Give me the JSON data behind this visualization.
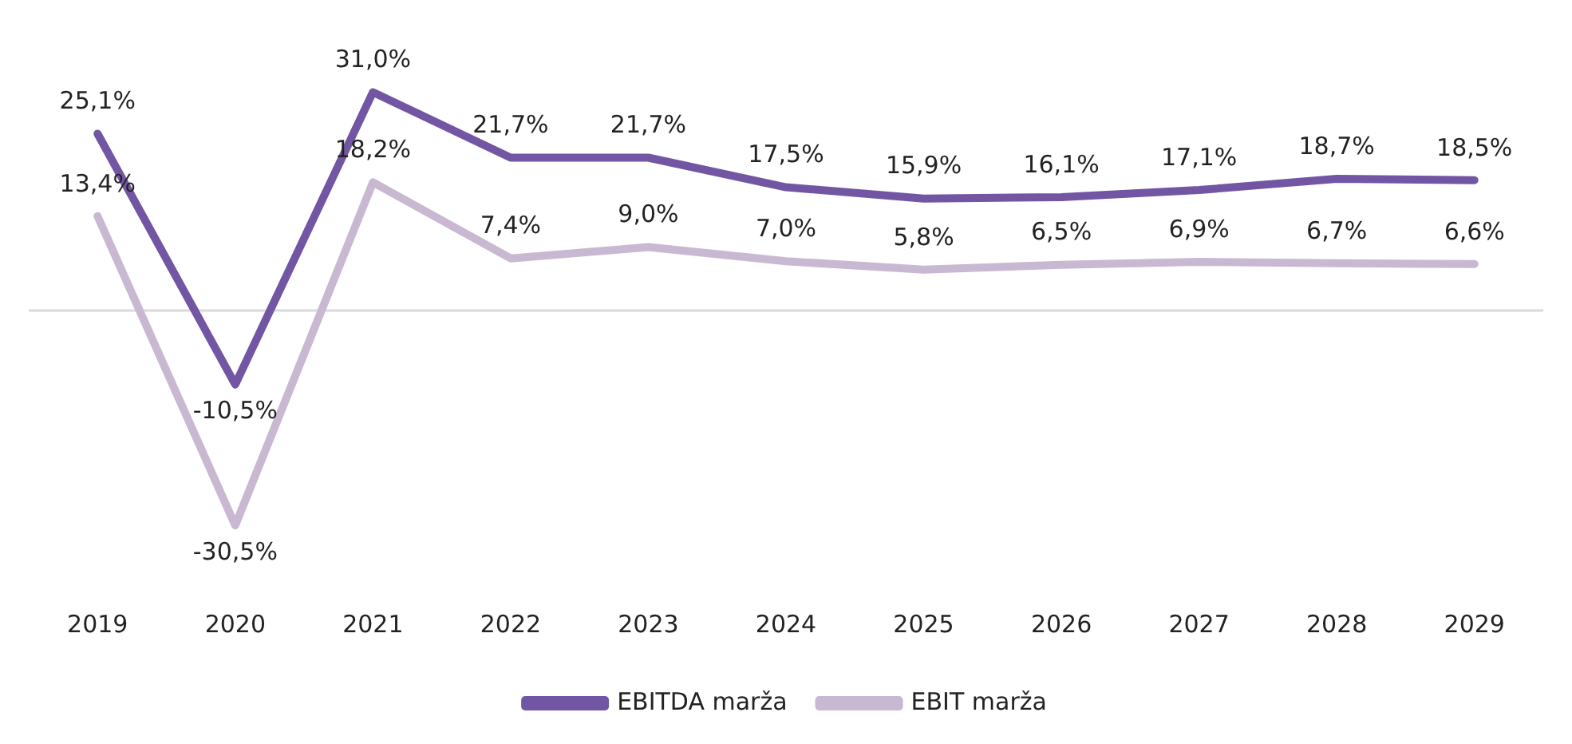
{
  "chart_data": {
    "type": "line",
    "categories": [
      "2019",
      "2020",
      "2021",
      "2022",
      "2023",
      "2024",
      "2025",
      "2026",
      "2027",
      "2028",
      "2029"
    ],
    "series": [
      {
        "name": "EBITDA marža",
        "color": "#7356a3",
        "values": [
          25.1,
          -10.5,
          31.0,
          21.7,
          21.7,
          17.5,
          15.9,
          16.1,
          17.1,
          18.7,
          18.5
        ],
        "value_labels": [
          "25,1%",
          "-10,5%",
          "31,0%",
          "21,7%",
          "21,7%",
          "17,5%",
          "15,9%",
          "16,1%",
          "17,1%",
          "18,7%",
          "18,5%"
        ]
      },
      {
        "name": "EBIT marža",
        "color": "#c9b8d1",
        "values": [
          13.4,
          -30.5,
          18.2,
          7.4,
          9.0,
          7.0,
          5.8,
          6.5,
          6.9,
          6.7,
          6.6
        ],
        "value_labels": [
          "13,4%",
          "-30,5%",
          "18,2%",
          "7,4%",
          "9,0%",
          "7,0%",
          "5,8%",
          "6,5%",
          "6,9%",
          "6,7%",
          "6,6%"
        ]
      }
    ],
    "legend": "bottom",
    "grid": false,
    "marker": "none",
    "line_style": "solid"
  }
}
